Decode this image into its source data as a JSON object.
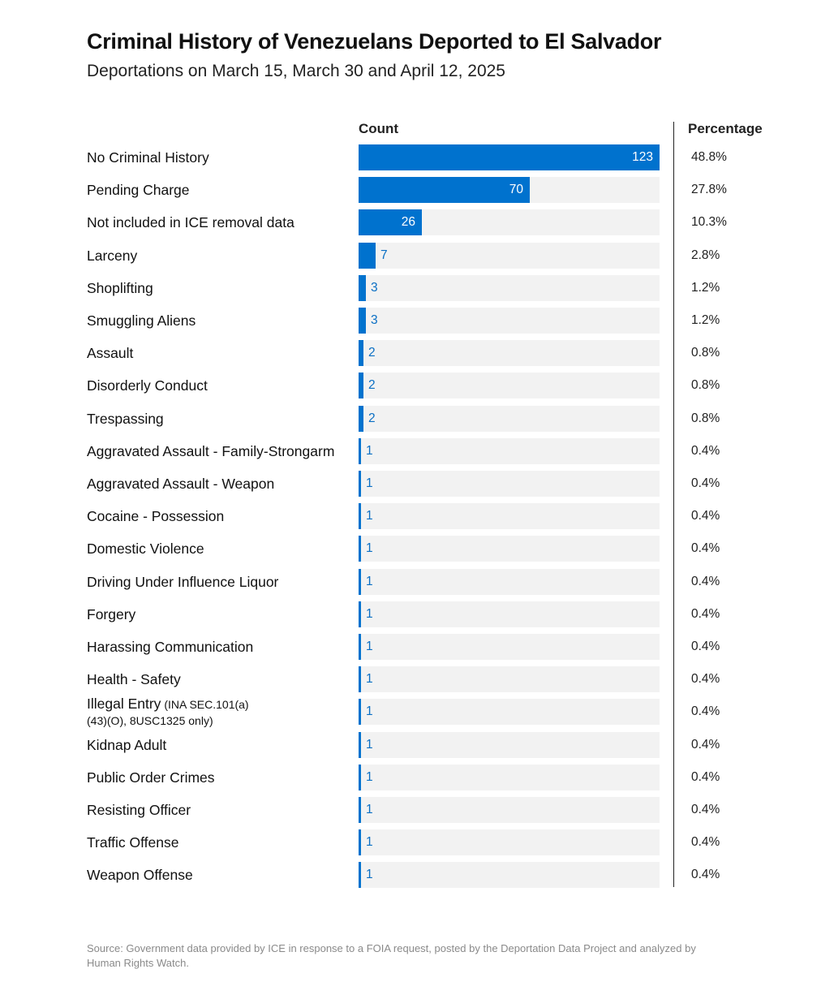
{
  "chart_data": {
    "type": "bar",
    "orientation": "horizontal",
    "title": "Criminal History of Venezuelans Deported to El Salvador",
    "subtitle": "Deportations on March 15, March 30 and April 12, 2025",
    "count_header": "Count",
    "percentage_header": "Percentage",
    "xlim": [
      0,
      123
    ],
    "categories": [
      "No Criminal History",
      "Pending Charge",
      "Not included in ICE removal data",
      "Larceny",
      "Shoplifting",
      "Smuggling Aliens",
      "Assault",
      "Disorderly Conduct",
      "Trespassing",
      "Aggravated Assault - Family-Strongarm",
      "Aggravated Assault - Weapon",
      "Cocaine - Possession",
      "Domestic Violence",
      "Driving Under Influence Liquor",
      "Forgery",
      "Harassing Communication",
      "Health - Safety",
      "Illegal Entry",
      "Kidnap Adult",
      "Public Order Crimes",
      "Resisting Officer",
      "Traffic Offense",
      "Weapon Offense"
    ],
    "label_notes": [
      "",
      "",
      "",
      "",
      "",
      "",
      "",
      "",
      "",
      "",
      "",
      "",
      "",
      "",
      "",
      "",
      "",
      "(INA SEC.101(a)(43)(O), 8USC1325 only)",
      "",
      "",
      "",
      "",
      ""
    ],
    "values": [
      123,
      70,
      26,
      7,
      3,
      3,
      2,
      2,
      2,
      1,
      1,
      1,
      1,
      1,
      1,
      1,
      1,
      1,
      1,
      1,
      1,
      1,
      1
    ],
    "value_labels": [
      "123",
      "70",
      "26",
      "7",
      "3",
      "3",
      "2",
      "2",
      "2",
      "1",
      "1",
      "1",
      "1",
      "1",
      "1",
      "1",
      "1",
      "1",
      "1",
      "1",
      "1",
      "1",
      "1"
    ],
    "percentages": [
      "48.8%",
      "27.8%",
      "10.3%",
      "2.8%",
      "1.2%",
      "1.2%",
      "0.8%",
      "0.8%",
      "0.8%",
      "0.4%",
      "0.4%",
      "0.4%",
      "0.4%",
      "0.4%",
      "0.4%",
      "0.4%",
      "0.4%",
      "0.4%",
      "0.4%",
      "0.4%",
      "0.4%",
      "0.4%",
      "0.4%"
    ],
    "bar_color": "#0072ce",
    "track_color": "#f2f2f2"
  },
  "source": "Source: Government data provided by ICE in response to a FOIA request, posted by the Deportation Data Project and analyzed by Human Rights Watch."
}
